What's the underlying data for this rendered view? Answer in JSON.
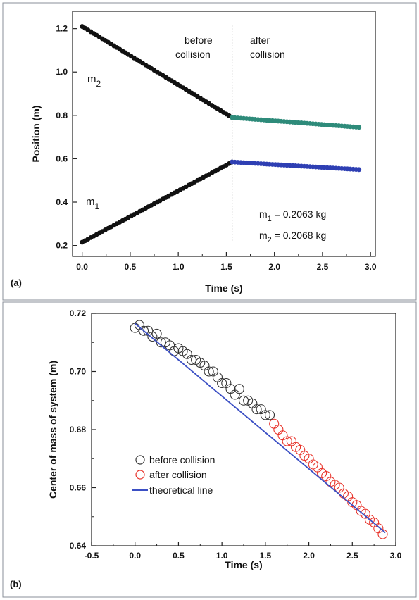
{
  "colors": {
    "m2_before": "#111111",
    "m2_after": "#2e8b7a",
    "m1_before": "#111111",
    "m1_after": "#2e3fb3",
    "cm_before": "#333333",
    "cm_after": "#e8332a",
    "theory": "#3b4fc4",
    "frame": "#8a8f98"
  },
  "chart_data": [
    {
      "type": "scatter",
      "panel_label": "(a)",
      "xlabel": "Time (s)",
      "ylabel": "Position (m)",
      "xlim": [
        -0.1,
        3.05
      ],
      "ylim": [
        0.15,
        1.28
      ],
      "xticks": [
        "0.0",
        "0.5",
        "1.0",
        "1.5",
        "2.0",
        "2.5",
        "3.0"
      ],
      "yticks": [
        "0.2",
        "0.4",
        "0.6",
        "0.8",
        "1.0",
        "1.2"
      ],
      "collision_time": 1.56,
      "region_before": [
        "before",
        "collision"
      ],
      "region_after": [
        "after",
        "collision"
      ],
      "series": [
        {
          "name": "m2",
          "label_main": "m",
          "label_sub": "2",
          "phase": "before",
          "t_start": 0.0,
          "t_end": 1.56,
          "y_start": 1.21,
          "y_end": 0.79
        },
        {
          "name": "m2",
          "phase": "after",
          "t_start": 1.56,
          "t_end": 2.88,
          "y_start": 0.79,
          "y_end": 0.745
        },
        {
          "name": "m1",
          "label_main": "m",
          "label_sub": "1",
          "phase": "before",
          "t_start": 0.0,
          "t_end": 1.56,
          "y_start": 0.215,
          "y_end": 0.585
        },
        {
          "name": "m1",
          "phase": "after",
          "t_start": 1.56,
          "t_end": 2.88,
          "y_start": 0.585,
          "y_end": 0.55
        }
      ],
      "annotations": [
        {
          "main": "m",
          "sub": "1",
          "rest": " = 0.2063 kg"
        },
        {
          "main": "m",
          "sub": "2",
          "rest": " = 0.2068 kg"
        }
      ]
    },
    {
      "type": "scatter",
      "panel_label": "(b)",
      "xlabel": "Time (s)",
      "ylabel": "Center of mass of system (m)",
      "xlim": [
        -0.5,
        3.0
      ],
      "ylim": [
        0.64,
        0.72
      ],
      "xticks": [
        "-0.5",
        "0.0",
        "0.5",
        "1.0",
        "1.5",
        "2.0",
        "2.5",
        "3.0"
      ],
      "yticks": [
        "0.64",
        "0.66",
        "0.68",
        "0.70",
        "0.72"
      ],
      "series": [
        {
          "name": "before collision",
          "points": [
            [
              0.0,
              0.715
            ],
            [
              0.05,
              0.716
            ],
            [
              0.1,
              0.714
            ],
            [
              0.15,
              0.714
            ],
            [
              0.2,
              0.712
            ],
            [
              0.25,
              0.713
            ],
            [
              0.3,
              0.71
            ],
            [
              0.35,
              0.71
            ],
            [
              0.4,
              0.709
            ],
            [
              0.45,
              0.707
            ],
            [
              0.5,
              0.708
            ],
            [
              0.55,
              0.707
            ],
            [
              0.6,
              0.706
            ],
            [
              0.65,
              0.704
            ],
            [
              0.7,
              0.704
            ],
            [
              0.75,
              0.703
            ],
            [
              0.8,
              0.702
            ],
            [
              0.85,
              0.7
            ],
            [
              0.9,
              0.7
            ],
            [
              0.95,
              0.698
            ],
            [
              1.0,
              0.696
            ],
            [
              1.05,
              0.696
            ],
            [
              1.1,
              0.694
            ],
            [
              1.15,
              0.692
            ],
            [
              1.2,
              0.694
            ],
            [
              1.25,
              0.69
            ],
            [
              1.3,
              0.69
            ],
            [
              1.35,
              0.689
            ],
            [
              1.4,
              0.687
            ],
            [
              1.45,
              0.687
            ],
            [
              1.5,
              0.685
            ],
            [
              1.55,
              0.685
            ]
          ]
        },
        {
          "name": "after collision",
          "points": [
            [
              1.6,
              0.682
            ],
            [
              1.65,
              0.68
            ],
            [
              1.7,
              0.678
            ],
            [
              1.75,
              0.676
            ],
            [
              1.8,
              0.676
            ],
            [
              1.85,
              0.674
            ],
            [
              1.9,
              0.673
            ],
            [
              1.95,
              0.671
            ],
            [
              2.0,
              0.67
            ],
            [
              2.05,
              0.668
            ],
            [
              2.1,
              0.667
            ],
            [
              2.15,
              0.665
            ],
            [
              2.2,
              0.664
            ],
            [
              2.25,
              0.662
            ],
            [
              2.3,
              0.661
            ],
            [
              2.35,
              0.66
            ],
            [
              2.4,
              0.658
            ],
            [
              2.45,
              0.657
            ],
            [
              2.5,
              0.655
            ],
            [
              2.55,
              0.654
            ],
            [
              2.6,
              0.652
            ],
            [
              2.65,
              0.651
            ],
            [
              2.7,
              0.649
            ],
            [
              2.75,
              0.648
            ],
            [
              2.8,
              0.646
            ],
            [
              2.85,
              0.644
            ]
          ]
        },
        {
          "name": "theoretical line",
          "x": [
            0.0,
            2.88
          ],
          "y": [
            0.7165,
            0.6445
          ]
        }
      ],
      "legend": [
        "before collision",
        "after collision",
        "theoretical line"
      ]
    }
  ]
}
